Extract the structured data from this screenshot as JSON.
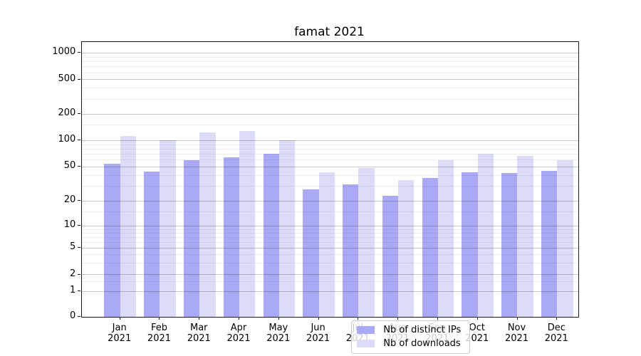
{
  "chart_data": {
    "type": "bar",
    "title": "famat 2021",
    "categories": [
      "Jan 2021",
      "Feb 2021",
      "Mar 2021",
      "Apr 2021",
      "May 2021",
      "Jun 2021",
      "Jul 2021",
      "Aug 2021",
      "Sep 2021",
      "Oct 2021",
      "Nov 2021",
      "Dec 2021"
    ],
    "series": [
      {
        "name": "Nb of distinct IPs",
        "color": "#a9a9f5",
        "values": [
          54,
          44,
          60,
          64,
          70,
          27,
          31,
          23,
          37,
          43,
          42,
          45
        ]
      },
      {
        "name": "Nb of downloads",
        "color": "#dcdcf8",
        "values": [
          112,
          100,
          124,
          127,
          100,
          43,
          48,
          35,
          60,
          70,
          66,
          60
        ]
      }
    ],
    "xlabel": "",
    "ylabel": "",
    "y_ticks": [
      0,
      1,
      2,
      5,
      10,
      20,
      50,
      100,
      200,
      500,
      1000
    ],
    "ylim": [
      0,
      1000
    ],
    "yscale": "log-like with 1-2-5 major ticks and zero baseline",
    "grid": "horizontal major and minor gridlines",
    "legend_position": "inside plot, lower center-left",
    "legend_labels": [
      "Nb of distinct IPs",
      "Nb of downloads"
    ]
  },
  "axes": {
    "x_tick_line2": "2021",
    "spine_color": "#1a1a1a"
  }
}
